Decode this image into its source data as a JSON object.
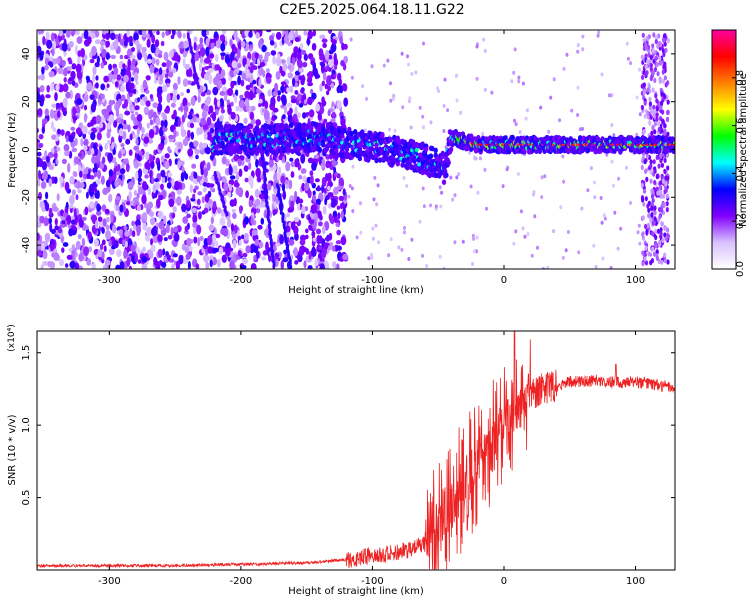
{
  "title": "C2E5.2025.064.18.11.G22",
  "chart_data": [
    {
      "type": "heatmap",
      "xlabel": "Height of straight line (km)",
      "ylabel": "Frequency (Hz)",
      "xlim": [
        -355,
        130
      ],
      "ylim": [
        -50,
        50
      ],
      "xticks": [
        -300,
        -200,
        -100,
        0,
        100
      ],
      "yticks": [
        -40,
        -20,
        0,
        20,
        40
      ],
      "colorbar": {
        "label": "Normalized spectral amplitude",
        "range": [
          0,
          1
        ],
        "ticks": [
          "0.0",
          "0.2",
          "0.4",
          "0.6",
          "0.8"
        ],
        "tick_values": [
          0.0,
          0.2,
          0.4,
          0.6,
          0.8
        ],
        "colors": [
          "#ffffff",
          "#d9c2ff",
          "#8000ff",
          "#0000ff",
          "#00ffff",
          "#00ff00",
          "#ffff00",
          "#ff8000",
          "#ff0000",
          "#ff00a0"
        ]
      },
      "features": {
        "noise_region_x": [
          -355,
          -120
        ],
        "signal_band": [
          {
            "x": -220,
            "y": 4
          },
          {
            "x": -180,
            "y": 4
          },
          {
            "x": -140,
            "y": 5
          },
          {
            "x": -120,
            "y": 3
          },
          {
            "x": -100,
            "y": 1
          },
          {
            "x": -80,
            "y": -1
          },
          {
            "x": -60,
            "y": -4
          },
          {
            "x": -45,
            "y": -8
          },
          {
            "x": -40,
            "y": 5
          },
          {
            "x": -20,
            "y": 2
          },
          {
            "x": 0,
            "y": 2
          },
          {
            "x": 50,
            "y": 2
          },
          {
            "x": 100,
            "y": 2
          },
          {
            "x": 130,
            "y": 2
          }
        ],
        "noise_column_x": [
          105,
          125
        ]
      }
    },
    {
      "type": "line",
      "xlabel": "Height of straight line (km)",
      "ylabel": "SNR (10 * v/v)",
      "scale_label": "(x10⁴)",
      "xlim": [
        -355,
        130
      ],
      "ylim": [
        0,
        1.65
      ],
      "xticks": [
        -300,
        -200,
        -100,
        0,
        100
      ],
      "yticks": [
        "0.5",
        "1.0",
        "1.5"
      ],
      "ytick_values": [
        0.5,
        1.0,
        1.5
      ],
      "color": "#ee2222",
      "series": [
        {
          "x": [
            -355,
            -300,
            -250,
            -200,
            -150,
            -120,
            -100,
            -80,
            -60,
            -50,
            -40,
            -30,
            -20,
            -10,
            0,
            10,
            20,
            30,
            40,
            50,
            60,
            70,
            80,
            90,
            100,
            110,
            120,
            130
          ],
          "values": [
            0.03,
            0.03,
            0.03,
            0.04,
            0.05,
            0.07,
            0.1,
            0.12,
            0.18,
            0.3,
            0.45,
            0.6,
            0.75,
            0.85,
            1.0,
            1.1,
            1.2,
            1.25,
            1.27,
            1.3,
            1.3,
            1.31,
            1.3,
            1.29,
            1.3,
            1.29,
            1.27,
            1.26
          ]
        }
      ],
      "spikes": [
        {
          "x": 8,
          "y": 1.65
        },
        {
          "x": 85,
          "y": 1.42
        }
      ]
    }
  ]
}
